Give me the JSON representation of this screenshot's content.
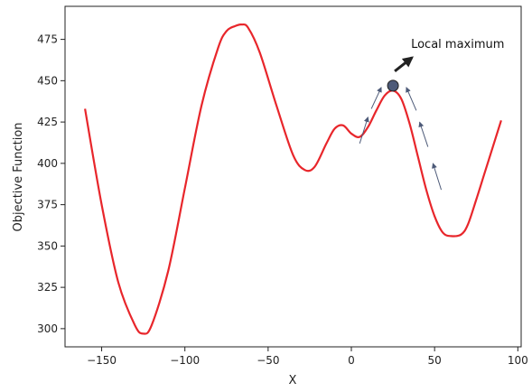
{
  "chart_data": {
    "type": "line",
    "title": "",
    "xlabel": "X",
    "ylabel": "Objective Function",
    "xlim": [
      -172,
      102
    ],
    "ylim": [
      289,
      495
    ],
    "xticks": [
      -150,
      -100,
      -50,
      0,
      50,
      100
    ],
    "yticks": [
      300,
      325,
      350,
      375,
      400,
      425,
      450,
      475
    ],
    "xtick_labels": [
      "−150",
      "−100",
      "−50",
      "0",
      "50",
      "100"
    ],
    "ytick_labels": [
      "300",
      "325",
      "350",
      "375",
      "400",
      "425",
      "450",
      "475"
    ],
    "grid": false,
    "series": [
      {
        "color": "#e8262b",
        "x": [
          -160,
          -150,
          -140,
          -130,
          -125,
          -120,
          -110,
          -100,
          -90,
          -80,
          -75,
          -70,
          -66,
          -62,
          -55,
          -45,
          -35,
          -28,
          -22,
          -15,
          -10,
          -5,
          0,
          5,
          10,
          15,
          20,
          25,
          30,
          35,
          40,
          45,
          50,
          55,
          60,
          66,
          70,
          75,
          80,
          85,
          90
        ],
        "y": [
          433,
          375,
          328,
          302,
          297,
          302,
          335,
          385,
          435,
          470,
          480,
          483,
          484,
          482,
          467,
          435,
          405,
          396,
          398,
          412,
          421,
          423,
          418,
          416,
          422,
          432,
          441,
          444,
          439,
          424,
          404,
          384,
          368,
          358,
          356,
          357,
          363,
          378,
          394,
          410,
          426
        ]
      }
    ],
    "annotations": [
      {
        "text": "Local maximum",
        "point": {
          "x": 25,
          "y": 447
        },
        "arrow_color": "#222222",
        "marker_color": "#4d5a78"
      }
    ],
    "climb_arrows": [
      {
        "from": {
          "x": 5,
          "y": 412
        },
        "to": {
          "x": 10,
          "y": 428
        }
      },
      {
        "from": {
          "x": 12,
          "y": 433
        },
        "to": {
          "x": 18,
          "y": 446
        }
      },
      {
        "from": {
          "x": 54,
          "y": 384
        },
        "to": {
          "x": 49,
          "y": 400
        }
      },
      {
        "from": {
          "x": 46,
          "y": 410
        },
        "to": {
          "x": 41,
          "y": 425
        }
      },
      {
        "from": {
          "x": 39,
          "y": 432
        },
        "to": {
          "x": 33,
          "y": 446
        }
      }
    ]
  }
}
